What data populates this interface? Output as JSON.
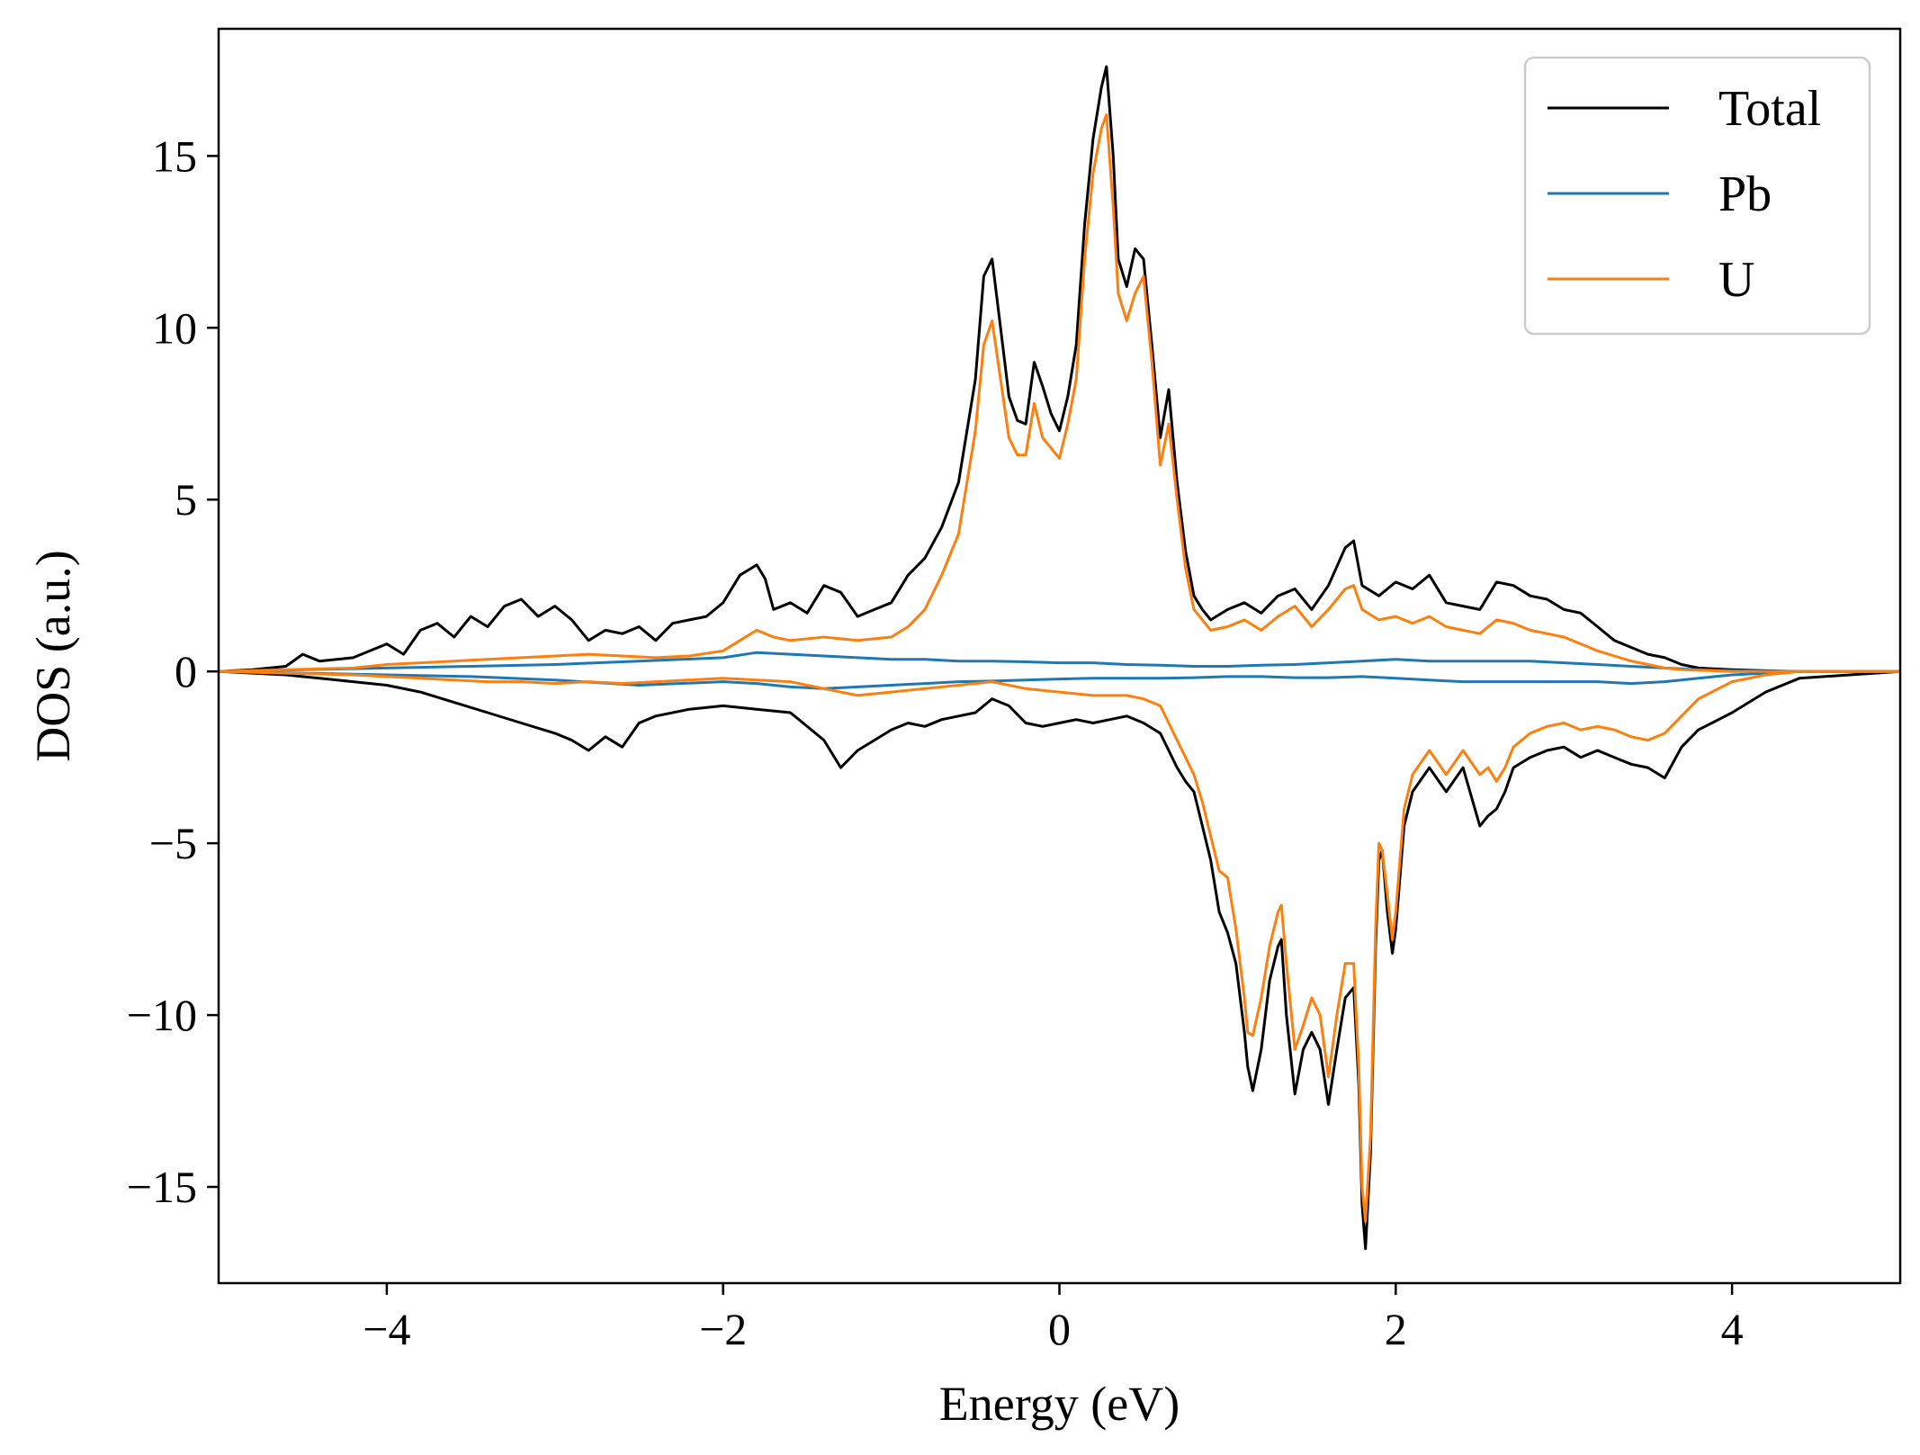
{
  "chart_data": {
    "type": "line",
    "title": "",
    "xlabel": "Energy (eV)",
    "ylabel": "DOS (a.u.)",
    "xlim": [
      -5,
      5
    ],
    "ylim": [
      -17.8,
      18.7
    ],
    "xticks": [
      -4,
      -2,
      0,
      2,
      4
    ],
    "xtick_labels": [
      "−4",
      "−2",
      "0",
      "2",
      "4"
    ],
    "yticks": [
      -15,
      -10,
      -5,
      0,
      5,
      10,
      15
    ],
    "ytick_labels": [
      "−15",
      "−10",
      "−5",
      "0",
      "5",
      "10",
      "15"
    ],
    "grid": false,
    "legend_position": "top-right",
    "spin_channels": [
      "up",
      "down"
    ],
    "series": [
      {
        "name": "Total",
        "color": "#000000",
        "up": {
          "x": [
            -5.0,
            -4.8,
            -4.6,
            -4.5,
            -4.4,
            -4.2,
            -4.0,
            -3.9,
            -3.8,
            -3.7,
            -3.6,
            -3.5,
            -3.4,
            -3.3,
            -3.2,
            -3.1,
            -3.0,
            -2.9,
            -2.8,
            -2.7,
            -2.6,
            -2.5,
            -2.4,
            -2.3,
            -2.2,
            -2.1,
            -2.0,
            -1.9,
            -1.8,
            -1.75,
            -1.7,
            -1.6,
            -1.5,
            -1.4,
            -1.3,
            -1.2,
            -1.1,
            -1.0,
            -0.9,
            -0.8,
            -0.7,
            -0.6,
            -0.5,
            -0.45,
            -0.4,
            -0.35,
            -0.3,
            -0.25,
            -0.2,
            -0.15,
            -0.1,
            -0.05,
            0.0,
            0.05,
            0.1,
            0.15,
            0.2,
            0.25,
            0.28,
            0.32,
            0.35,
            0.4,
            0.45,
            0.5,
            0.55,
            0.6,
            0.65,
            0.7,
            0.75,
            0.8,
            0.85,
            0.9,
            1.0,
            1.1,
            1.2,
            1.3,
            1.4,
            1.5,
            1.6,
            1.7,
            1.75,
            1.8,
            1.9,
            2.0,
            2.1,
            2.2,
            2.3,
            2.4,
            2.5,
            2.6,
            2.7,
            2.8,
            2.9,
            3.0,
            3.1,
            3.2,
            3.3,
            3.4,
            3.5,
            3.6,
            3.7,
            3.8,
            4.0,
            4.2,
            4.4,
            5.0
          ],
          "y": [
            0.0,
            0.05,
            0.15,
            0.5,
            0.3,
            0.4,
            0.8,
            0.5,
            1.2,
            1.4,
            1.0,
            1.6,
            1.3,
            1.9,
            2.1,
            1.6,
            1.9,
            1.5,
            0.9,
            1.2,
            1.1,
            1.3,
            0.9,
            1.4,
            1.5,
            1.6,
            2.0,
            2.8,
            3.1,
            2.7,
            1.8,
            2.0,
            1.7,
            2.5,
            2.3,
            1.6,
            1.8,
            2.0,
            2.8,
            3.3,
            4.2,
            5.5,
            8.5,
            11.5,
            12.0,
            10.0,
            8.0,
            7.3,
            7.2,
            9.0,
            8.3,
            7.5,
            7.0,
            8.0,
            9.5,
            13.0,
            15.5,
            17.0,
            17.6,
            15.0,
            12.0,
            11.2,
            12.3,
            12.0,
            9.5,
            6.8,
            8.2,
            5.5,
            3.5,
            2.2,
            1.8,
            1.5,
            1.8,
            2.0,
            1.7,
            2.2,
            2.4,
            1.8,
            2.5,
            3.6,
            3.8,
            2.5,
            2.2,
            2.6,
            2.4,
            2.8,
            2.0,
            1.9,
            1.8,
            2.6,
            2.5,
            2.2,
            2.1,
            1.8,
            1.7,
            1.3,
            0.9,
            0.7,
            0.5,
            0.4,
            0.2,
            0.1,
            0.05,
            0.02,
            0.0,
            0.0
          ]
        },
        "down": {
          "x": [
            -5.0,
            -4.6,
            -4.2,
            -4.0,
            -3.8,
            -3.6,
            -3.4,
            -3.2,
            -3.0,
            -2.9,
            -2.8,
            -2.7,
            -2.6,
            -2.5,
            -2.4,
            -2.2,
            -2.0,
            -1.8,
            -1.6,
            -1.4,
            -1.3,
            -1.2,
            -1.1,
            -1.0,
            -0.9,
            -0.8,
            -0.7,
            -0.6,
            -0.5,
            -0.4,
            -0.3,
            -0.2,
            -0.1,
            0.0,
            0.1,
            0.2,
            0.3,
            0.4,
            0.5,
            0.6,
            0.65,
            0.7,
            0.75,
            0.8,
            0.85,
            0.9,
            0.95,
            1.0,
            1.05,
            1.1,
            1.12,
            1.15,
            1.2,
            1.25,
            1.3,
            1.32,
            1.35,
            1.4,
            1.45,
            1.5,
            1.55,
            1.6,
            1.65,
            1.7,
            1.75,
            1.78,
            1.8,
            1.82,
            1.85,
            1.88,
            1.9,
            1.92,
            1.95,
            1.98,
            2.0,
            2.05,
            2.1,
            2.2,
            2.3,
            2.4,
            2.5,
            2.55,
            2.6,
            2.65,
            2.7,
            2.8,
            2.9,
            3.0,
            3.1,
            3.2,
            3.3,
            3.4,
            3.5,
            3.6,
            3.7,
            3.8,
            4.0,
            4.2,
            4.4,
            5.0
          ],
          "y": [
            0.0,
            -0.1,
            -0.3,
            -0.4,
            -0.6,
            -0.9,
            -1.2,
            -1.5,
            -1.8,
            -2.0,
            -2.3,
            -1.9,
            -2.2,
            -1.5,
            -1.3,
            -1.1,
            -1.0,
            -1.1,
            -1.2,
            -2.0,
            -2.8,
            -2.3,
            -2.0,
            -1.7,
            -1.5,
            -1.6,
            -1.4,
            -1.3,
            -1.2,
            -0.8,
            -1.0,
            -1.5,
            -1.6,
            -1.5,
            -1.4,
            -1.5,
            -1.4,
            -1.3,
            -1.5,
            -1.8,
            -2.3,
            -2.8,
            -3.2,
            -3.5,
            -4.5,
            -5.5,
            -7.0,
            -7.6,
            -8.5,
            -10.5,
            -11.5,
            -12.2,
            -11.0,
            -9.0,
            -8.0,
            -7.8,
            -10.0,
            -12.3,
            -11.0,
            -10.5,
            -11.0,
            -12.6,
            -11.0,
            -9.5,
            -9.2,
            -12.0,
            -15.5,
            -16.8,
            -14.0,
            -8.0,
            -5.5,
            -5.2,
            -7.0,
            -8.2,
            -7.5,
            -4.5,
            -3.5,
            -2.8,
            -3.5,
            -2.8,
            -4.5,
            -4.2,
            -4.0,
            -3.5,
            -2.8,
            -2.5,
            -2.3,
            -2.2,
            -2.5,
            -2.3,
            -2.5,
            -2.7,
            -2.8,
            -3.1,
            -2.2,
            -1.7,
            -1.2,
            -0.6,
            -0.2,
            0.0
          ]
        }
      },
      {
        "name": "Pb",
        "color": "#1f77b4",
        "up": {
          "x": [
            -5.0,
            -4.5,
            -4.0,
            -3.5,
            -3.0,
            -2.5,
            -2.0,
            -1.8,
            -1.6,
            -1.4,
            -1.2,
            -1.0,
            -0.8,
            -0.6,
            -0.4,
            -0.2,
            0.0,
            0.2,
            0.4,
            0.6,
            0.8,
            1.0,
            1.2,
            1.4,
            1.6,
            1.8,
            2.0,
            2.2,
            2.4,
            2.6,
            2.8,
            3.0,
            3.2,
            3.4,
            3.6,
            3.8,
            4.0,
            4.4,
            5.0
          ],
          "y": [
            0.0,
            0.05,
            0.1,
            0.15,
            0.2,
            0.3,
            0.4,
            0.55,
            0.5,
            0.45,
            0.4,
            0.35,
            0.35,
            0.3,
            0.3,
            0.28,
            0.25,
            0.25,
            0.2,
            0.18,
            0.15,
            0.15,
            0.18,
            0.2,
            0.25,
            0.3,
            0.35,
            0.3,
            0.3,
            0.3,
            0.3,
            0.25,
            0.2,
            0.15,
            0.1,
            0.05,
            0.02,
            0.0,
            0.0
          ]
        },
        "down": {
          "x": [
            -5.0,
            -4.5,
            -4.0,
            -3.5,
            -3.0,
            -2.5,
            -2.0,
            -1.8,
            -1.6,
            -1.4,
            -1.2,
            -1.0,
            -0.8,
            -0.6,
            -0.4,
            -0.2,
            0.0,
            0.2,
            0.4,
            0.6,
            0.8,
            1.0,
            1.2,
            1.4,
            1.6,
            1.8,
            2.0,
            2.2,
            2.4,
            2.6,
            2.8,
            3.0,
            3.2,
            3.4,
            3.6,
            3.8,
            4.0,
            4.4,
            5.0
          ],
          "y": [
            0.0,
            -0.05,
            -0.1,
            -0.15,
            -0.25,
            -0.4,
            -0.3,
            -0.35,
            -0.45,
            -0.5,
            -0.45,
            -0.4,
            -0.35,
            -0.3,
            -0.28,
            -0.25,
            -0.22,
            -0.2,
            -0.2,
            -0.2,
            -0.18,
            -0.15,
            -0.15,
            -0.18,
            -0.18,
            -0.15,
            -0.2,
            -0.25,
            -0.3,
            -0.3,
            -0.3,
            -0.3,
            -0.3,
            -0.35,
            -0.3,
            -0.2,
            -0.1,
            0.0,
            0.0
          ]
        }
      },
      {
        "name": "U",
        "color": "#ff7f0e",
        "up": {
          "x": [
            -5.0,
            -4.6,
            -4.2,
            -4.0,
            -3.8,
            -3.6,
            -3.4,
            -3.2,
            -3.0,
            -2.8,
            -2.6,
            -2.4,
            -2.2,
            -2.0,
            -1.9,
            -1.8,
            -1.7,
            -1.6,
            -1.4,
            -1.2,
            -1.0,
            -0.9,
            -0.8,
            -0.7,
            -0.6,
            -0.5,
            -0.45,
            -0.4,
            -0.35,
            -0.3,
            -0.25,
            -0.2,
            -0.15,
            -0.1,
            -0.05,
            0.0,
            0.05,
            0.1,
            0.15,
            0.2,
            0.25,
            0.28,
            0.32,
            0.35,
            0.4,
            0.45,
            0.5,
            0.55,
            0.6,
            0.65,
            0.7,
            0.75,
            0.8,
            0.85,
            0.9,
            1.0,
            1.1,
            1.2,
            1.3,
            1.4,
            1.5,
            1.6,
            1.7,
            1.75,
            1.8,
            1.9,
            2.0,
            2.1,
            2.2,
            2.3,
            2.4,
            2.5,
            2.6,
            2.7,
            2.8,
            2.9,
            3.0,
            3.1,
            3.2,
            3.3,
            3.4,
            3.5,
            3.6,
            3.7,
            4.0,
            5.0
          ],
          "y": [
            0.0,
            0.05,
            0.1,
            0.2,
            0.25,
            0.3,
            0.35,
            0.4,
            0.45,
            0.5,
            0.45,
            0.4,
            0.45,
            0.6,
            0.9,
            1.2,
            1.0,
            0.9,
            1.0,
            0.9,
            1.0,
            1.3,
            1.8,
            2.8,
            4.0,
            7.0,
            9.5,
            10.2,
            8.5,
            6.8,
            6.3,
            6.3,
            7.8,
            6.8,
            6.5,
            6.2,
            7.2,
            8.5,
            12.0,
            14.5,
            15.8,
            16.2,
            13.5,
            11.0,
            10.2,
            11.0,
            11.5,
            9.0,
            6.0,
            7.2,
            5.0,
            3.0,
            1.8,
            1.5,
            1.2,
            1.3,
            1.5,
            1.2,
            1.6,
            1.9,
            1.3,
            1.8,
            2.4,
            2.5,
            1.8,
            1.5,
            1.6,
            1.4,
            1.6,
            1.3,
            1.2,
            1.1,
            1.5,
            1.4,
            1.2,
            1.1,
            1.0,
            0.8,
            0.6,
            0.45,
            0.3,
            0.2,
            0.1,
            0.05,
            0.0,
            0.0
          ]
        },
        "down": {
          "x": [
            -5.0,
            -4.6,
            -4.2,
            -4.0,
            -3.8,
            -3.6,
            -3.4,
            -3.2,
            -3.0,
            -2.8,
            -2.6,
            -2.4,
            -2.2,
            -2.0,
            -1.8,
            -1.6,
            -1.4,
            -1.2,
            -1.0,
            -0.8,
            -0.6,
            -0.4,
            -0.2,
            0.0,
            0.2,
            0.4,
            0.5,
            0.6,
            0.65,
            0.7,
            0.75,
            0.8,
            0.85,
            0.9,
            0.95,
            1.0,
            1.05,
            1.1,
            1.12,
            1.15,
            1.2,
            1.25,
            1.3,
            1.32,
            1.35,
            1.4,
            1.45,
            1.5,
            1.55,
            1.6,
            1.65,
            1.7,
            1.75,
            1.78,
            1.8,
            1.82,
            1.85,
            1.88,
            1.9,
            1.92,
            1.95,
            1.98,
            2.0,
            2.05,
            2.1,
            2.2,
            2.3,
            2.4,
            2.5,
            2.55,
            2.6,
            2.65,
            2.7,
            2.8,
            2.9,
            3.0,
            3.1,
            3.2,
            3.3,
            3.4,
            3.5,
            3.6,
            3.7,
            3.8,
            4.0,
            4.2,
            4.4,
            5.0
          ],
          "y": [
            0.0,
            -0.05,
            -0.1,
            -0.15,
            -0.2,
            -0.25,
            -0.3,
            -0.3,
            -0.35,
            -0.3,
            -0.35,
            -0.3,
            -0.25,
            -0.2,
            -0.25,
            -0.3,
            -0.5,
            -0.7,
            -0.6,
            -0.5,
            -0.4,
            -0.3,
            -0.5,
            -0.6,
            -0.7,
            -0.7,
            -0.8,
            -1.0,
            -1.5,
            -2.0,
            -2.5,
            -3.0,
            -3.8,
            -4.8,
            -5.8,
            -6.0,
            -7.5,
            -9.5,
            -10.5,
            -10.6,
            -9.5,
            -8.0,
            -7.0,
            -6.8,
            -8.5,
            -11.0,
            -10.3,
            -9.5,
            -10.0,
            -11.8,
            -10.0,
            -8.5,
            -8.5,
            -11.5,
            -15.0,
            -16.0,
            -13.5,
            -7.5,
            -5.0,
            -5.2,
            -6.5,
            -7.8,
            -7.0,
            -4.0,
            -3.0,
            -2.3,
            -3.0,
            -2.3,
            -3.0,
            -2.8,
            -3.2,
            -2.8,
            -2.2,
            -1.8,
            -1.6,
            -1.5,
            -1.7,
            -1.6,
            -1.7,
            -1.9,
            -2.0,
            -1.8,
            -1.3,
            -0.8,
            -0.3,
            -0.1,
            0.0,
            0.0
          ]
        }
      }
    ]
  }
}
